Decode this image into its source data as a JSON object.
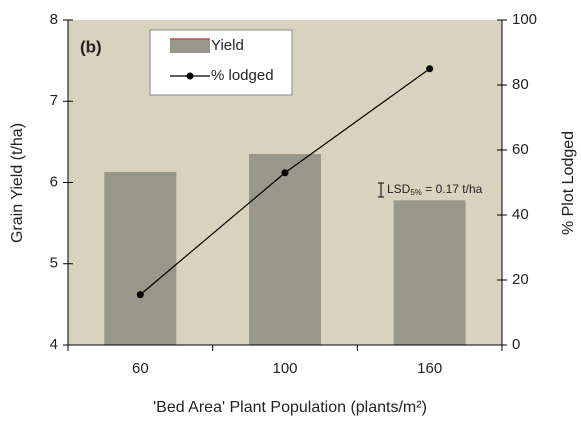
{
  "chart_data": {
    "type": "bar_line",
    "annotation": "(b)",
    "lsd_label": {
      "main": "LSD",
      "sub": "5%",
      "rest": " = 0.17 t/ha"
    },
    "xlabel": "'Bed Area' Plant Population (plants/m²)",
    "ylabel": "Grain Yield (t/ha)",
    "y2label": "% Plot Lodged",
    "categories": [
      "60",
      "100",
      "160"
    ],
    "series": [
      {
        "name": "Yield",
        "type": "bar",
        "color": "#99968a",
        "values": [
          6.13,
          6.35,
          5.78
        ]
      },
      {
        "name": "% lodged",
        "type": "line",
        "axis": "y2",
        "color": "#000000",
        "values": [
          15.5,
          53,
          85
        ]
      }
    ],
    "ylim": [
      4,
      8
    ],
    "yticks": [
      4,
      5,
      6,
      7,
      8
    ],
    "y2lim": [
      0,
      100
    ],
    "y2ticks": [
      0,
      20,
      40,
      60,
      80,
      100
    ],
    "legend": "top-left"
  }
}
